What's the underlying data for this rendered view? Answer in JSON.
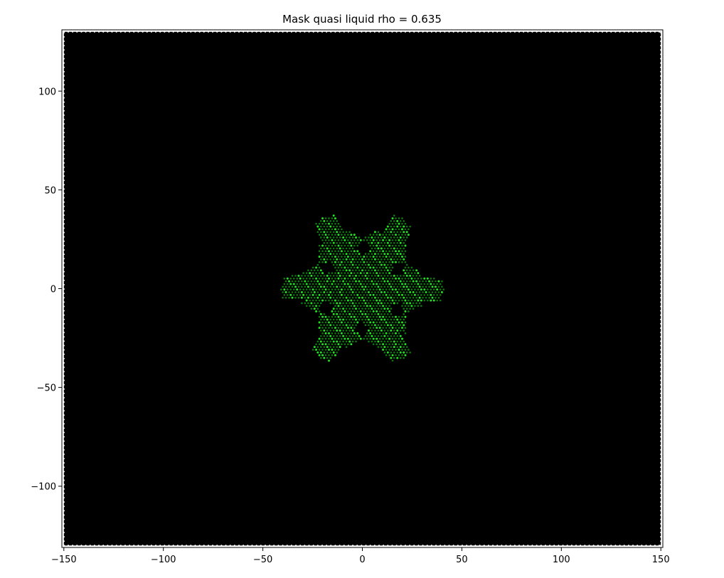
{
  "chart_data": {
    "type": "scatter",
    "title": "Mask quasi liquid rho = 0.635",
    "xlabel": "",
    "ylabel": "",
    "xlim": [
      -151,
      151
    ],
    "ylim": [
      -131,
      131
    ],
    "x_ticks": [
      -150,
      -100,
      -50,
      0,
      50,
      100,
      150
    ],
    "x_tick_labels": [
      "−150",
      "−100",
      "−50",
      "0",
      "50",
      "100",
      "150"
    ],
    "y_ticks": [
      100,
      50,
      0,
      -50,
      -100
    ],
    "y_tick_labels": [
      "100",
      "50",
      "0",
      "−50",
      "−100"
    ],
    "grid": false,
    "domain": {
      "x": [
        -150,
        150
      ],
      "y": [
        -130,
        130
      ]
    },
    "colors": {
      "background_region": "#000000",
      "boundary_points": "#ffffff",
      "quasi_liquid_bright": "#22e022",
      "quasi_liquid_dark": "#0f7a0f"
    },
    "pattern": {
      "description_symmetry": 6,
      "arm_angles_deg": [
        -1,
        59,
        119,
        179,
        239,
        299
      ],
      "outer_radius": 40,
      "core_radius": 5
    }
  }
}
